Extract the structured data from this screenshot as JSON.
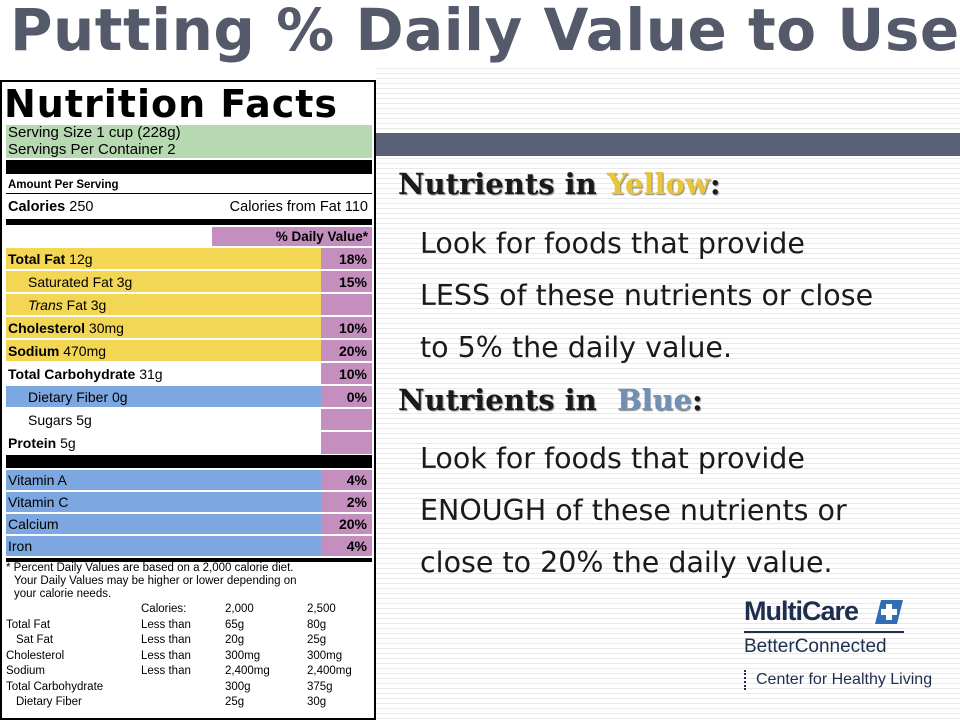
{
  "slide": {
    "title": "Putting % Daily Value to Use"
  },
  "label": {
    "title": "Nutrition Facts",
    "serving_size": "Serving Size 1 cup (228g)",
    "servings_per_container": "Servings Per Container  2",
    "amount_per_serving": "Amount Per Serving",
    "calories_label": "Calories",
    "calories_value": "250",
    "calories_from_fat": "Calories from Fat 110",
    "dv_header": "% Daily Value*",
    "nutrients": [
      {
        "name_bold": "Total Fat",
        "name": " 12g",
        "pct": "18%",
        "color": "yellow"
      },
      {
        "name_bold": "",
        "name": "Saturated Fat 3g",
        "pct": "15%",
        "color": "yellow"
      },
      {
        "name_bold": "",
        "name_italic": "Trans",
        "name": " Fat 3g",
        "pct": "",
        "color": "yellow"
      },
      {
        "name_bold": "Cholesterol",
        "name": " 30mg",
        "pct": "10%",
        "color": "yellow"
      },
      {
        "name_bold": "Sodium",
        "name": " 470mg",
        "pct": "20%",
        "color": "yellow"
      },
      {
        "name_bold": "Total Carbohydrate",
        "name": " 31g",
        "pct": "10%",
        "color": "white"
      },
      {
        "name_bold": "",
        "name": "Dietary Fiber 0g",
        "pct": "0%",
        "color": "blue"
      },
      {
        "name_bold": "",
        "name": "Sugars 5g",
        "pct": "",
        "color": "white"
      },
      {
        "name_bold": "Protein",
        "name": " 5g",
        "pct": "",
        "color": "white"
      }
    ],
    "vitamins": [
      {
        "name": "Vitamin A",
        "pct": "4%"
      },
      {
        "name": "Vitamin C",
        "pct": "2%"
      },
      {
        "name": "Calcium",
        "pct": "20%"
      },
      {
        "name": "Iron",
        "pct": "4%"
      }
    ],
    "footnote_1": "* Percent Daily Values are based on a 2,000 calorie diet.",
    "footnote_2": "Your Daily Values may be higher or lower depending on",
    "footnote_3": "your calorie needs.",
    "table_header": [
      "Calories:",
      "2,000",
      "2,500"
    ],
    "table_rows": [
      [
        "Total Fat",
        "Less than",
        "65g",
        "80g"
      ],
      [
        "Sat Fat",
        "Less than",
        "20g",
        "25g"
      ],
      [
        "Cholesterol",
        "Less than",
        "300mg",
        "300mg"
      ],
      [
        "Sodium",
        "Less than",
        "2,400mg",
        "2,400mg"
      ],
      [
        "Total Carbohydrate",
        "",
        "300g",
        "375g"
      ],
      [
        "Dietary Fiber",
        "",
        "25g",
        "30g"
      ]
    ]
  },
  "yellow_section": {
    "heading_prefix": "Nutrients in ",
    "heading_color_word": "Yellow",
    "heading_suffix": ":",
    "line1": "Look for foods that provide",
    "line2": "LESS of these nutrients or close",
    "line3": "to 5% the daily value."
  },
  "blue_section": {
    "heading_prefix": "Nutrients in  ",
    "heading_color_word": "Blue",
    "heading_suffix": ":",
    "line1": "Look for foods that provide",
    "line2": "ENOUGH of these nutrients or",
    "line3": "close to 20% the daily value."
  },
  "logo": {
    "name": "MultiCare",
    "sub": "BetterConnected",
    "tagline": "Center for Healthy Living"
  },
  "colors": {
    "yellow_word": "#e9c53a",
    "blue_word": "#6f90b8",
    "accent_bar": "#5b6079",
    "title": "#555a6a"
  }
}
